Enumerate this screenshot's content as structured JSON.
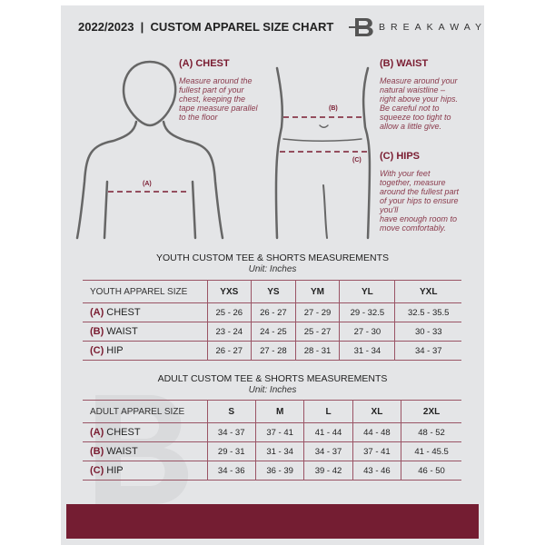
{
  "header": {
    "title": "2022/2023  |  CUSTOM APPAREL SIZE CHART",
    "brand": "BREAKAWAY",
    "logo_letter": "B"
  },
  "guide": {
    "chest": {
      "label": "(A) CHEST",
      "marker": "(A)",
      "text": [
        "Measure around the",
        "fullest part of your",
        "chest, keeping the",
        "tape measure parallel",
        "to the floor"
      ]
    },
    "waist": {
      "label": "(B) WAIST",
      "marker": "(B)",
      "text": [
        "Measure around your",
        "natural waistline –",
        "right above your hips.",
        "Be careful not to",
        "squeeze too tight to",
        "allow a little give."
      ]
    },
    "hips": {
      "label": "(C) HIPS",
      "marker": "(C)",
      "text": [
        "With your feet",
        "together, measure",
        "around the fullest part",
        "of your hips to ensure",
        "you'll",
        "have enough room to",
        "move comfortably."
      ]
    }
  },
  "youth": {
    "title": "YOUTH CUSTOM TEE & SHORTS MEASUREMENTS",
    "unit": "Unit: Inches",
    "header": "YOUTH APPAREL SIZE",
    "sizes": [
      "YXS",
      "YS",
      "YM",
      "YL",
      "YXL"
    ],
    "rows": [
      {
        "code": "(A)",
        "name": "CHEST",
        "values": [
          "25 - 26",
          "26 - 27",
          "27 - 29",
          "29 - 32.5",
          "32.5 - 35.5"
        ]
      },
      {
        "code": "(B)",
        "name": "WAIST",
        "values": [
          "23 - 24",
          "24 - 25",
          "25 - 27",
          "27 - 30",
          "30 - 33"
        ]
      },
      {
        "code": "(C)",
        "name": "HIP",
        "values": [
          "26 - 27",
          "27 - 28",
          "28 - 31",
          "31 - 34",
          "34 - 37"
        ]
      }
    ]
  },
  "adult": {
    "title": "ADULT CUSTOM TEE & SHORTS MEASUREMENTS",
    "unit": "Unit: Inches",
    "header": "ADULT APPAREL SIZE",
    "sizes": [
      "S",
      "M",
      "L",
      "XL",
      "2XL"
    ],
    "rows": [
      {
        "code": "(A)",
        "name": "CHEST",
        "values": [
          "34 - 37",
          "37 - 41",
          "41 - 44",
          "44 - 48",
          "48 - 52"
        ]
      },
      {
        "code": "(B)",
        "name": "WAIST",
        "values": [
          "29 - 31",
          "31 - 34",
          "34 - 37",
          "37 - 41",
          "41 - 45.5"
        ]
      },
      {
        "code": "(C)",
        "name": "HIP",
        "values": [
          "34 - 36",
          "36 - 39",
          "39 - 42",
          "43 - 46",
          "46 - 50"
        ]
      }
    ]
  },
  "colors": {
    "accent": "#741d32",
    "background": "#e4e5e7"
  }
}
